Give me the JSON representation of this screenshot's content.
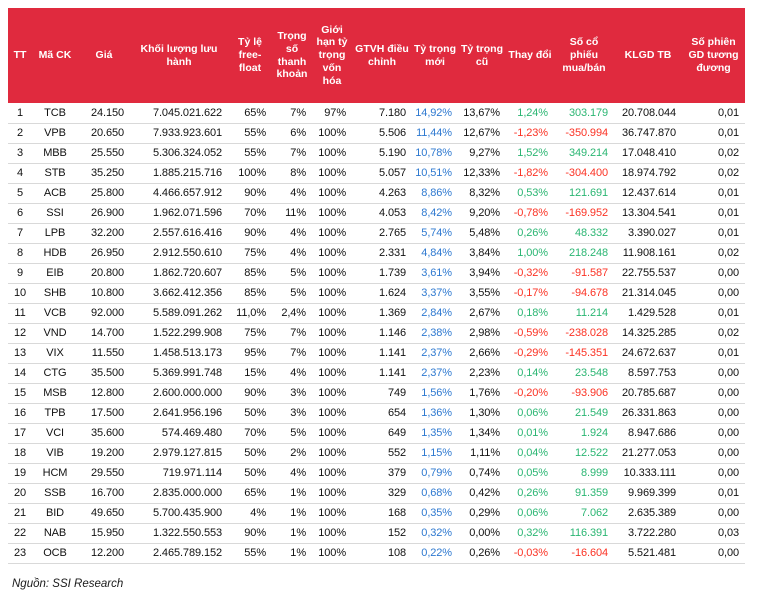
{
  "colors": {
    "header_bg": "#E02A3E",
    "header_text": "#FFFFFF",
    "text": "#111111",
    "row_line": "#D9D9D9",
    "new_weight_blue": "#2E79D0",
    "positive_green": "#2BB673",
    "negative_red": "#FB3224"
  },
  "table": {
    "columns": [
      {
        "key": "tt",
        "label": "TT"
      },
      {
        "key": "ma-ck",
        "label": "Mã CK"
      },
      {
        "key": "gia",
        "label": "Giá"
      },
      {
        "key": "khoi-luong-luu-hanh",
        "label": "Khối lượng lưu hành"
      },
      {
        "key": "ty-le-free-float",
        "label": "Tỷ lệ free-float"
      },
      {
        "key": "trong-so-thanh-khoan",
        "label": "Trọng số thanh khoản"
      },
      {
        "key": "gioi-han-ty-trong-von-hoa",
        "label": "Giới hạn tỷ trọng vốn hóa"
      },
      {
        "key": "gtvh-dieu-chinh",
        "label": "GTVH điều chỉnh"
      },
      {
        "key": "ty-trong-moi",
        "label": "Tỷ trọng mới"
      },
      {
        "key": "ty-trong-cu",
        "label": "Tỷ trọng cũ"
      },
      {
        "key": "thay-doi",
        "label": "Thay đổi"
      },
      {
        "key": "so-co-phieu-mua-ban",
        "label": "Số cổ phiếu mua/bán"
      },
      {
        "key": "klgd-tb",
        "label": "KLGD TB"
      },
      {
        "key": "so-phien-gd-tuong-duong",
        "label": "Số phiên GD tương đương"
      }
    ],
    "rows": [
      [
        "1",
        "TCB",
        "24.150",
        "7.045.021.622",
        "65%",
        "7%",
        "97%",
        "7.180",
        "14,92%",
        "13,67%",
        "1,24%",
        "303.179",
        "20.708.044",
        "0,01"
      ],
      [
        "2",
        "VPB",
        "20.650",
        "7.933.923.601",
        "55%",
        "6%",
        "100%",
        "5.506",
        "11,44%",
        "12,67%",
        "-1,23%",
        "-350.994",
        "36.747.870",
        "0,01"
      ],
      [
        "3",
        "MBB",
        "25.550",
        "5.306.324.052",
        "55%",
        "7%",
        "100%",
        "5.190",
        "10,78%",
        "9,27%",
        "1,52%",
        "349.214",
        "17.048.410",
        "0,02"
      ],
      [
        "4",
        "STB",
        "35.250",
        "1.885.215.716",
        "100%",
        "8%",
        "100%",
        "5.057",
        "10,51%",
        "12,33%",
        "-1,82%",
        "-304.400",
        "18.974.792",
        "0,02"
      ],
      [
        "5",
        "ACB",
        "25.800",
        "4.466.657.912",
        "90%",
        "4%",
        "100%",
        "4.263",
        "8,86%",
        "8,32%",
        "0,53%",
        "121.691",
        "12.437.614",
        "0,01"
      ],
      [
        "6",
        "SSI",
        "26.900",
        "1.962.071.596",
        "70%",
        "11%",
        "100%",
        "4.053",
        "8,42%",
        "9,20%",
        "-0,78%",
        "-169.952",
        "13.304.541",
        "0,01"
      ],
      [
        "7",
        "LPB",
        "32.200",
        "2.557.616.416",
        "90%",
        "4%",
        "100%",
        "2.765",
        "5,74%",
        "5,48%",
        "0,26%",
        "48.332",
        "3.390.027",
        "0,01"
      ],
      [
        "8",
        "HDB",
        "26.950",
        "2.912.550.610",
        "75%",
        "4%",
        "100%",
        "2.331",
        "4,84%",
        "3,84%",
        "1,00%",
        "218.248",
        "11.908.161",
        "0,02"
      ],
      [
        "9",
        "EIB",
        "20.800",
        "1.862.720.607",
        "85%",
        "5%",
        "100%",
        "1.739",
        "3,61%",
        "3,94%",
        "-0,32%",
        "-91.587",
        "22.755.537",
        "0,00"
      ],
      [
        "10",
        "SHB",
        "10.800",
        "3.662.412.356",
        "85%",
        "5%",
        "100%",
        "1.624",
        "3,37%",
        "3,55%",
        "-0,17%",
        "-94.678",
        "21.314.045",
        "0,00"
      ],
      [
        "11",
        "VCB",
        "92.000",
        "5.589.091.262",
        "11,0%",
        "2,4%",
        "100%",
        "1.369",
        "2,84%",
        "2,67%",
        "0,18%",
        "11.214",
        "1.429.528",
        "0,01"
      ],
      [
        "12",
        "VND",
        "14.700",
        "1.522.299.908",
        "75%",
        "7%",
        "100%",
        "1.146",
        "2,38%",
        "2,98%",
        "-0,59%",
        "-238.028",
        "14.325.285",
        "0,02"
      ],
      [
        "13",
        "VIX",
        "11.550",
        "1.458.513.173",
        "95%",
        "7%",
        "100%",
        "1.141",
        "2,37%",
        "2,66%",
        "-0,29%",
        "-145.351",
        "24.672.637",
        "0,01"
      ],
      [
        "14",
        "CTG",
        "35.500",
        "5.369.991.748",
        "15%",
        "4%",
        "100%",
        "1.141",
        "2,37%",
        "2,23%",
        "0,14%",
        "23.548",
        "8.597.753",
        "0,00"
      ],
      [
        "15",
        "MSB",
        "12.800",
        "2.600.000.000",
        "90%",
        "3%",
        "100%",
        "749",
        "1,56%",
        "1,76%",
        "-0,20%",
        "-93.906",
        "20.785.687",
        "0,00"
      ],
      [
        "16",
        "TPB",
        "17.500",
        "2.641.956.196",
        "50%",
        "3%",
        "100%",
        "654",
        "1,36%",
        "1,30%",
        "0,06%",
        "21.549",
        "26.331.863",
        "0,00"
      ],
      [
        "17",
        "VCI",
        "35.600",
        "574.469.480",
        "70%",
        "5%",
        "100%",
        "649",
        "1,35%",
        "1,34%",
        "0,01%",
        "1.924",
        "8.947.686",
        "0,00"
      ],
      [
        "18",
        "VIB",
        "19.200",
        "2.979.127.815",
        "50%",
        "2%",
        "100%",
        "552",
        "1,15%",
        "1,11%",
        "0,04%",
        "12.522",
        "21.277.053",
        "0,00"
      ],
      [
        "19",
        "HCM",
        "29.550",
        "719.971.114",
        "50%",
        "4%",
        "100%",
        "379",
        "0,79%",
        "0,74%",
        "0,05%",
        "8.999",
        "10.333.111",
        "0,00"
      ],
      [
        "20",
        "SSB",
        "16.700",
        "2.835.000.000",
        "65%",
        "1%",
        "100%",
        "329",
        "0,68%",
        "0,42%",
        "0,26%",
        "91.359",
        "9.969.399",
        "0,01"
      ],
      [
        "21",
        "BID",
        "49.650",
        "5.700.435.900",
        "4%",
        "1%",
        "100%",
        "168",
        "0,35%",
        "0,29%",
        "0,06%",
        "7.062",
        "2.635.389",
        "0,00"
      ],
      [
        "22",
        "NAB",
        "15.950",
        "1.322.550.553",
        "90%",
        "1%",
        "100%",
        "152",
        "0,32%",
        "0,00%",
        "0,32%",
        "116.391",
        "3.722.280",
        "0,03"
      ],
      [
        "23",
        "OCB",
        "12.200",
        "2.465.789.152",
        "55%",
        "1%",
        "100%",
        "108",
        "0,22%",
        "0,26%",
        "-0,03%",
        "-16.604",
        "5.521.481",
        "0,00"
      ]
    ],
    "blue_column_index": 8,
    "signed_column_indexes": [
      10,
      11
    ]
  },
  "footer": {
    "source": "Nguồn: SSI Research"
  }
}
